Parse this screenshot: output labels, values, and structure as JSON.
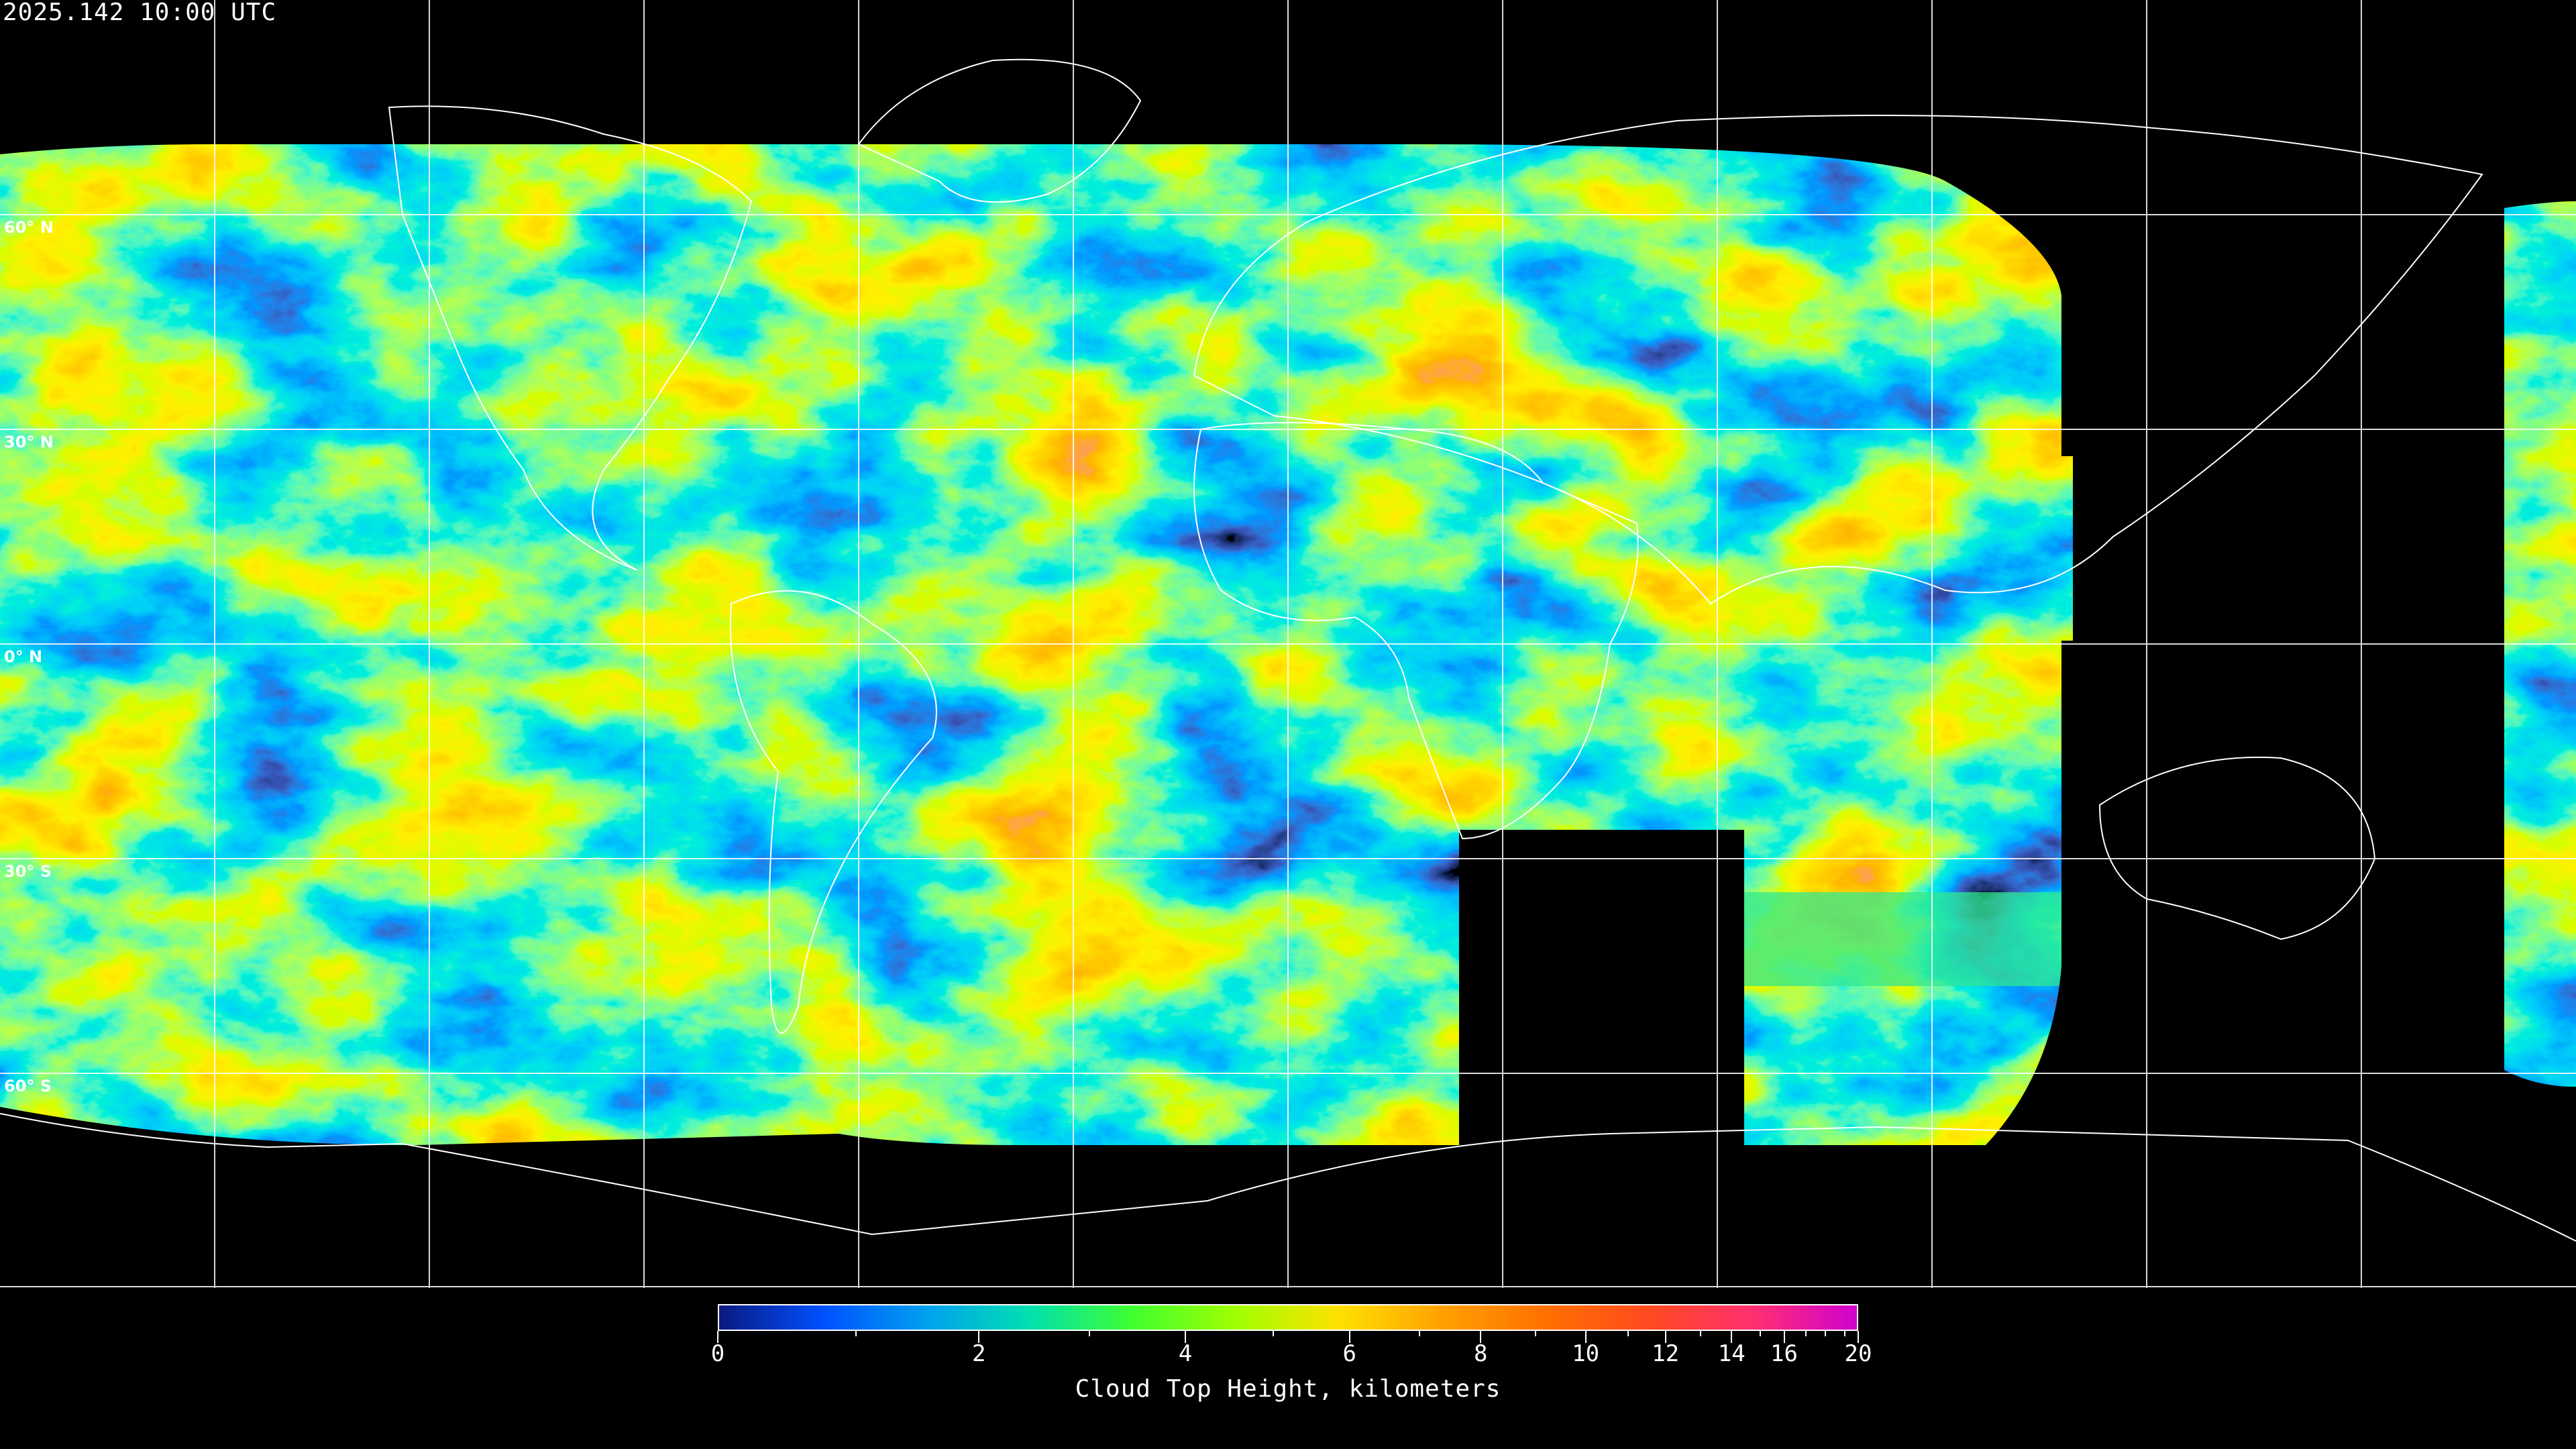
{
  "header": {
    "timestamp": "2025.142 10:00 UTC"
  },
  "map": {
    "projection": "equirectangular",
    "graticule_spacing_deg": 30,
    "latitude_labels": [
      "60° N",
      "30° N",
      "0° N",
      "30° S",
      "60° S"
    ],
    "background_color": "#000000",
    "gridline_color": "#ffffff",
    "coastline_color": "#ffffff"
  },
  "colorbar": {
    "title": "Cloud Top Height, kilometers",
    "tick_labels": [
      "0",
      "2",
      "4",
      "6",
      "8",
      "10",
      "12",
      "14",
      "16",
      "20"
    ],
    "range_km": [
      0,
      20
    ],
    "colors": [
      "#0a1a80",
      "#0050ff",
      "#00a0f0",
      "#00e0b0",
      "#40ff30",
      "#a0ff00",
      "#ffe000",
      "#ffa000",
      "#ff7000",
      "#ff4a20",
      "#ff3070",
      "#d000d0"
    ]
  }
}
